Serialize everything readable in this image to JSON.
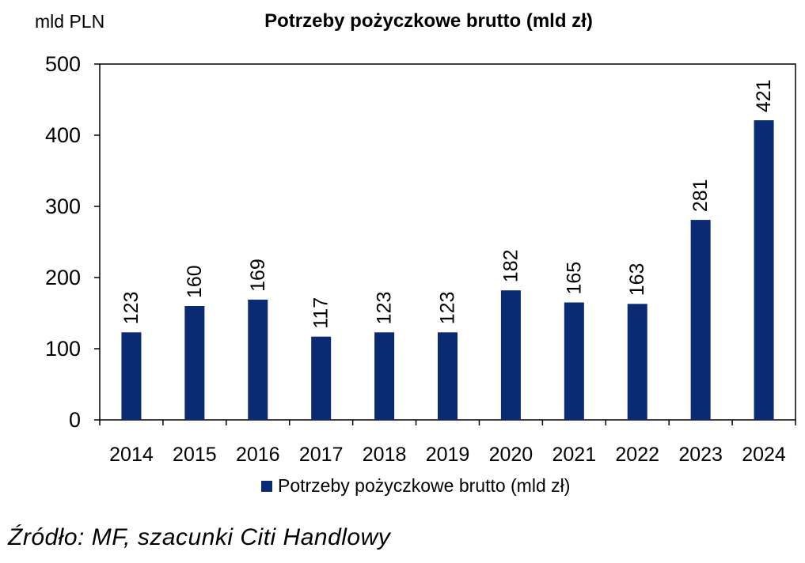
{
  "unit_label": "mld PLN",
  "source": "Źródło: MF, szacunki Citi Handlowy",
  "colors": {
    "bar": "#0a2a73",
    "axis": "#000000"
  },
  "chart_data": {
    "type": "bar",
    "title": "Potrzeby pożyczkowe brutto (mld zł)",
    "xlabel": "",
    "ylabel": "mld PLN",
    "ylim": [
      0,
      500
    ],
    "yticks": [
      0,
      100,
      200,
      300,
      400,
      500
    ],
    "categories": [
      "2014",
      "2015",
      "2016",
      "2017",
      "2018",
      "2019",
      "2020",
      "2021",
      "2022",
      "2023",
      "2024"
    ],
    "series": [
      {
        "name": "Potrzeby pożyczkowe brutto (mld zł)",
        "values": [
          123,
          160,
          169,
          117,
          123,
          123,
          182,
          165,
          163,
          281,
          421
        ]
      }
    ],
    "data_labels": [
      "123",
      "160",
      "169",
      "117",
      "123",
      "123",
      "182",
      "165",
      "163",
      "281",
      "421"
    ],
    "legend_position": "bottom",
    "grid": false
  }
}
